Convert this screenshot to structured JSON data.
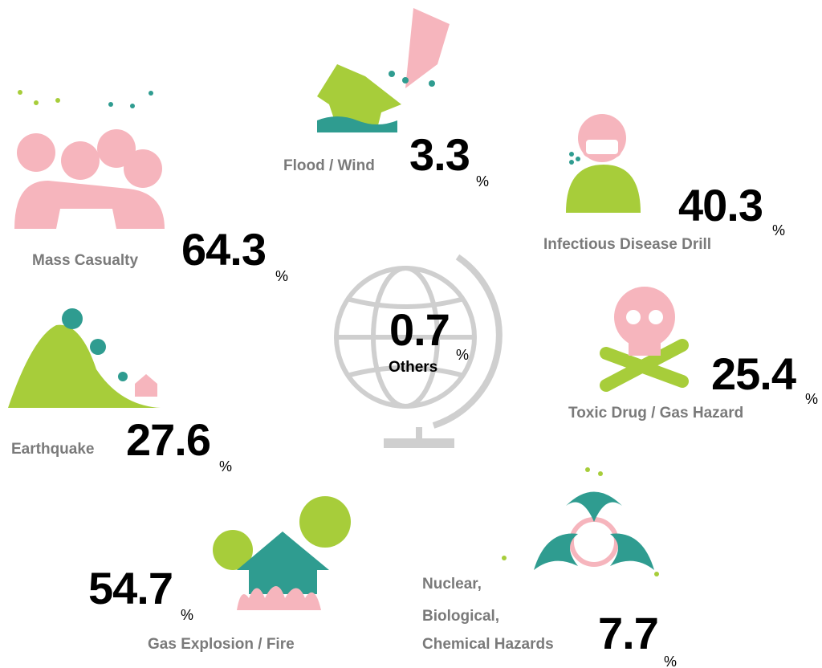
{
  "items": [
    {
      "label": "Flood / Wind",
      "value": 3.3,
      "unit": "%"
    },
    {
      "label": "Infectious Disease Drill",
      "value": 40.3,
      "unit": "%"
    },
    {
      "label": "Mass Casualty",
      "value": 64.3,
      "unit": "%"
    },
    {
      "label": "Others",
      "value": 0.7,
      "unit": "%"
    },
    {
      "label": "Toxic Drug / Gas Hazard",
      "value": 25.4,
      "unit": "%"
    },
    {
      "label": "Earthquake",
      "value": 27.6,
      "unit": "%"
    },
    {
      "label": "Gas Explosion / Fire",
      "value": 54.7,
      "unit": "%"
    },
    {
      "label": [
        "Nuclear,",
        "Biological,",
        "Chemical Hazards"
      ],
      "value": 7.7,
      "unit": "%"
    }
  ]
}
